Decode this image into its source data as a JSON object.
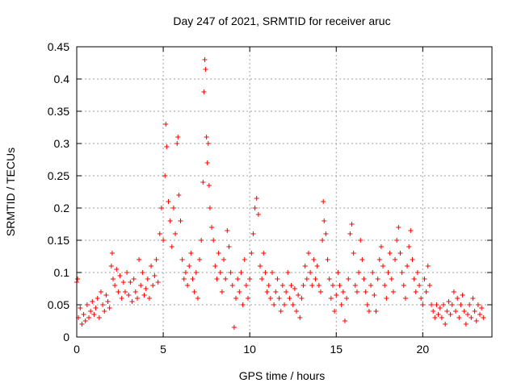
{
  "chart_data": {
    "type": "scatter",
    "title": "Day 247 of 2021, SRMTID for receiver aruc",
    "xlabel": "GPS time / hours",
    "ylabel": "SRMTID / TECUs",
    "xlim": [
      0,
      24
    ],
    "ylim": [
      0,
      0.45
    ],
    "grid": true,
    "marker": "+",
    "series_color": "#ff0000",
    "x_ticks": [
      0,
      5,
      10,
      15,
      20
    ],
    "x_tick_labels": [
      "0",
      "5",
      "10",
      "15",
      "20"
    ],
    "y_ticks": [
      0,
      0.05,
      0.1,
      0.15,
      0.2,
      0.25,
      0.3,
      0.35,
      0.4,
      0.45
    ],
    "y_tick_labels": [
      "0",
      "0.05",
      "0.1",
      "0.15",
      "0.2",
      "0.25",
      "0.3",
      "0.35",
      "0.4",
      "0.45"
    ],
    "series": [
      {
        "name": "SRMTID",
        "points": [
          [
            0.0,
            0.085
          ],
          [
            0.05,
            0.09
          ],
          [
            0.1,
            0.03
          ],
          [
            0.2,
            0.045
          ],
          [
            0.3,
            0.02
          ],
          [
            0.4,
            0.035
          ],
          [
            0.5,
            0.025
          ],
          [
            0.6,
            0.05
          ],
          [
            0.7,
            0.03
          ],
          [
            0.8,
            0.04
          ],
          [
            0.9,
            0.055
          ],
          [
            1.0,
            0.035
          ],
          [
            1.1,
            0.045
          ],
          [
            1.2,
            0.06
          ],
          [
            1.3,
            0.03
          ],
          [
            1.4,
            0.07
          ],
          [
            1.5,
            0.05
          ],
          [
            1.6,
            0.04
          ],
          [
            1.7,
            0.065
          ],
          [
            1.8,
            0.055
          ],
          [
            1.9,
            0.045
          ],
          [
            2.0,
            0.11
          ],
          [
            2.05,
            0.13
          ],
          [
            2.1,
            0.09
          ],
          [
            2.2,
            0.08
          ],
          [
            2.3,
            0.105
          ],
          [
            2.4,
            0.07
          ],
          [
            2.5,
            0.095
          ],
          [
            2.6,
            0.06
          ],
          [
            2.7,
            0.085
          ],
          [
            2.8,
            0.07
          ],
          [
            2.9,
            0.1
          ],
          [
            3.0,
            0.065
          ],
          [
            3.1,
            0.085
          ],
          [
            3.2,
            0.055
          ],
          [
            3.3,
            0.09
          ],
          [
            3.4,
            0.07
          ],
          [
            3.5,
            0.06
          ],
          [
            3.6,
            0.12
          ],
          [
            3.7,
            0.08
          ],
          [
            3.8,
            0.1
          ],
          [
            3.9,
            0.065
          ],
          [
            4.0,
            0.075
          ],
          [
            4.1,
            0.09
          ],
          [
            4.2,
            0.06
          ],
          [
            4.3,
            0.11
          ],
          [
            4.4,
            0.08
          ],
          [
            4.5,
            0.095
          ],
          [
            4.6,
            0.12
          ],
          [
            4.7,
            0.085
          ],
          [
            4.8,
            0.16
          ],
          [
            4.9,
            0.2
          ],
          [
            5.0,
            0.15
          ],
          [
            5.1,
            0.25
          ],
          [
            5.15,
            0.33
          ],
          [
            5.2,
            0.295
          ],
          [
            5.3,
            0.21
          ],
          [
            5.4,
            0.18
          ],
          [
            5.5,
            0.14
          ],
          [
            5.6,
            0.2
          ],
          [
            5.7,
            0.16
          ],
          [
            5.8,
            0.3
          ],
          [
            5.85,
            0.31
          ],
          [
            5.9,
            0.22
          ],
          [
            6.0,
            0.18
          ],
          [
            6.1,
            0.12
          ],
          [
            6.2,
            0.09
          ],
          [
            6.3,
            0.1
          ],
          [
            6.4,
            0.08
          ],
          [
            6.5,
            0.11
          ],
          [
            6.6,
            0.13
          ],
          [
            6.7,
            0.09
          ],
          [
            6.8,
            0.07
          ],
          [
            6.9,
            0.1
          ],
          [
            7.0,
            0.06
          ],
          [
            7.1,
            0.12
          ],
          [
            7.2,
            0.15
          ],
          [
            7.3,
            0.24
          ],
          [
            7.35,
            0.38
          ],
          [
            7.4,
            0.43
          ],
          [
            7.45,
            0.415
          ],
          [
            7.5,
            0.31
          ],
          [
            7.55,
            0.27
          ],
          [
            7.6,
            0.3
          ],
          [
            7.65,
            0.235
          ],
          [
            7.7,
            0.2
          ],
          [
            7.8,
            0.17
          ],
          [
            7.9,
            0.15
          ],
          [
            8.0,
            0.11
          ],
          [
            8.1,
            0.09
          ],
          [
            8.2,
            0.13
          ],
          [
            8.3,
            0.1
          ],
          [
            8.4,
            0.07
          ],
          [
            8.5,
            0.12
          ],
          [
            8.6,
            0.09
          ],
          [
            8.7,
            0.165
          ],
          [
            8.8,
            0.14
          ],
          [
            8.9,
            0.1
          ],
          [
            9.0,
            0.08
          ],
          [
            9.1,
            0.015
          ],
          [
            9.2,
            0.06
          ],
          [
            9.3,
            0.09
          ],
          [
            9.4,
            0.07
          ],
          [
            9.5,
            0.1
          ],
          [
            9.6,
            0.05
          ],
          [
            9.7,
            0.12
          ],
          [
            9.8,
            0.08
          ],
          [
            9.9,
            0.06
          ],
          [
            10.0,
            0.09
          ],
          [
            10.1,
            0.13
          ],
          [
            10.2,
            0.16
          ],
          [
            10.3,
            0.2
          ],
          [
            10.4,
            0.215
          ],
          [
            10.5,
            0.19
          ],
          [
            10.6,
            0.11
          ],
          [
            10.7,
            0.09
          ],
          [
            10.8,
            0.13
          ],
          [
            10.9,
            0.1
          ],
          [
            11.0,
            0.07
          ],
          [
            11.1,
            0.08
          ],
          [
            11.2,
            0.06
          ],
          [
            11.3,
            0.1
          ],
          [
            11.4,
            0.05
          ],
          [
            11.5,
            0.07
          ],
          [
            11.6,
            0.09
          ],
          [
            11.7,
            0.06
          ],
          [
            11.8,
            0.04
          ],
          [
            11.9,
            0.08
          ],
          [
            12.0,
            0.05
          ],
          [
            12.1,
            0.07
          ],
          [
            12.2,
            0.1
          ],
          [
            12.3,
            0.06
          ],
          [
            12.4,
            0.08
          ],
          [
            12.5,
            0.05
          ],
          [
            12.6,
            0.075
          ],
          [
            12.7,
            0.04
          ],
          [
            12.8,
            0.065
          ],
          [
            12.9,
            0.03
          ],
          [
            13.0,
            0.06
          ],
          [
            13.1,
            0.08
          ],
          [
            13.2,
            0.11
          ],
          [
            13.3,
            0.09
          ],
          [
            13.4,
            0.13
          ],
          [
            13.5,
            0.1
          ],
          [
            13.6,
            0.08
          ],
          [
            13.7,
            0.12
          ],
          [
            13.8,
            0.09
          ],
          [
            13.9,
            0.11
          ],
          [
            14.0,
            0.08
          ],
          [
            14.1,
            0.07
          ],
          [
            14.2,
            0.15
          ],
          [
            14.25,
            0.21
          ],
          [
            14.3,
            0.18
          ],
          [
            14.4,
            0.16
          ],
          [
            14.5,
            0.12
          ],
          [
            14.6,
            0.09
          ],
          [
            14.7,
            0.06
          ],
          [
            14.8,
            0.08
          ],
          [
            14.9,
            0.04
          ],
          [
            15.0,
            0.065
          ],
          [
            15.1,
            0.1
          ],
          [
            15.2,
            0.08
          ],
          [
            15.3,
            0.05
          ],
          [
            15.4,
            0.07
          ],
          [
            15.5,
            0.025
          ],
          [
            15.6,
            0.06
          ],
          [
            15.7,
            0.09
          ],
          [
            15.8,
            0.16
          ],
          [
            15.9,
            0.175
          ],
          [
            16.0,
            0.13
          ],
          [
            16.1,
            0.08
          ],
          [
            16.2,
            0.07
          ],
          [
            16.3,
            0.1
          ],
          [
            16.4,
            0.15
          ],
          [
            16.5,
            0.12
          ],
          [
            16.6,
            0.09
          ],
          [
            16.7,
            0.07
          ],
          [
            16.8,
            0.05
          ],
          [
            16.9,
            0.04
          ],
          [
            17.0,
            0.08
          ],
          [
            17.1,
            0.1
          ],
          [
            17.2,
            0.065
          ],
          [
            17.3,
            0.04
          ],
          [
            17.4,
            0.09
          ],
          [
            17.5,
            0.12
          ],
          [
            17.6,
            0.14
          ],
          [
            17.7,
            0.11
          ],
          [
            17.8,
            0.08
          ],
          [
            17.9,
            0.06
          ],
          [
            18.0,
            0.1
          ],
          [
            18.1,
            0.13
          ],
          [
            18.2,
            0.09
          ],
          [
            18.3,
            0.07
          ],
          [
            18.4,
            0.12
          ],
          [
            18.5,
            0.15
          ],
          [
            18.6,
            0.17
          ],
          [
            18.7,
            0.13
          ],
          [
            18.8,
            0.1
          ],
          [
            18.9,
            0.08
          ],
          [
            19.0,
            0.06
          ],
          [
            19.1,
            0.11
          ],
          [
            19.2,
            0.14
          ],
          [
            19.3,
            0.165
          ],
          [
            19.4,
            0.12
          ],
          [
            19.5,
            0.09
          ],
          [
            19.6,
            0.07
          ],
          [
            19.7,
            0.1
          ],
          [
            19.8,
            0.08
          ],
          [
            19.9,
            0.06
          ],
          [
            20.0,
            0.05
          ],
          [
            20.1,
            0.09
          ],
          [
            20.2,
            0.07
          ],
          [
            20.3,
            0.11
          ],
          [
            20.4,
            0.08
          ],
          [
            20.5,
            0.05
          ],
          [
            20.6,
            0.04
          ],
          [
            20.7,
            0.03
          ],
          [
            20.8,
            0.05
          ],
          [
            20.9,
            0.035
          ],
          [
            21.0,
            0.045
          ],
          [
            21.1,
            0.03
          ],
          [
            21.2,
            0.05
          ],
          [
            21.3,
            0.02
          ],
          [
            21.4,
            0.04
          ],
          [
            21.5,
            0.055
          ],
          [
            21.6,
            0.035
          ],
          [
            21.7,
            0.05
          ],
          [
            21.8,
            0.07
          ],
          [
            21.9,
            0.04
          ],
          [
            22.0,
            0.06
          ],
          [
            22.1,
            0.03
          ],
          [
            22.2,
            0.05
          ],
          [
            22.3,
            0.065
          ],
          [
            22.4,
            0.04
          ],
          [
            22.5,
            0.02
          ],
          [
            22.6,
            0.035
          ],
          [
            22.7,
            0.05
          ],
          [
            22.8,
            0.03
          ],
          [
            22.9,
            0.06
          ],
          [
            23.0,
            0.04
          ],
          [
            23.1,
            0.025
          ],
          [
            23.2,
            0.05
          ],
          [
            23.3,
            0.035
          ],
          [
            23.4,
            0.045
          ],
          [
            23.5,
            0.03
          ]
        ]
      }
    ]
  }
}
